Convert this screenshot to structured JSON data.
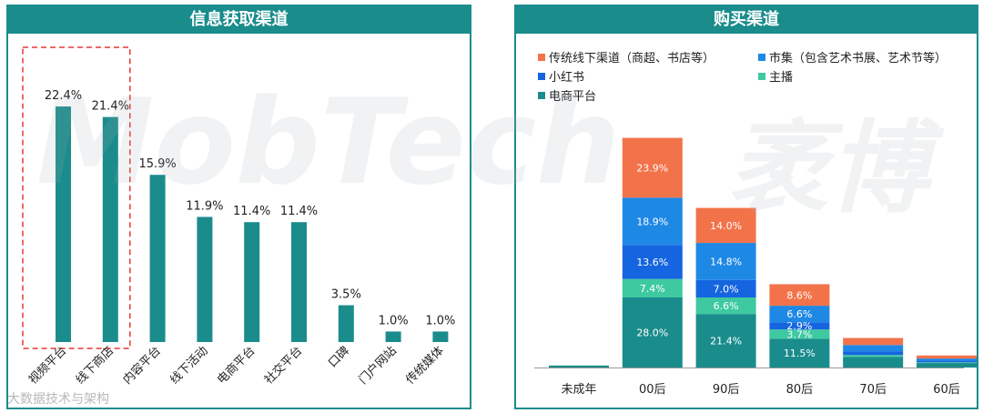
{
  "watermark": {
    "brand": "MobTech",
    "brand_cn": "袤博",
    "corner": "大数据技术与架构"
  },
  "chart_data": [
    {
      "type": "bar",
      "title": "信息获取渠道",
      "categories": [
        "视频平台",
        "线下商店",
        "内容平台",
        "线下活动",
        "电商平台",
        "社交平台",
        "口碑",
        "门户网站",
        "传统媒体"
      ],
      "values": [
        22.4,
        21.4,
        15.9,
        11.9,
        11.4,
        11.4,
        3.5,
        1.0,
        1.0
      ],
      "value_labels": [
        "22.4%",
        "21.4%",
        "15.9%",
        "11.9%",
        "11.4%",
        "11.4%",
        "3.5%",
        "1.0%",
        "1.0%"
      ],
      "ylim": [
        0,
        25
      ],
      "color": "#1a8c8c",
      "highlight": [
        "视频平台",
        "线下商店"
      ],
      "grid": false
    },
    {
      "type": "bar",
      "stacked": true,
      "title": "购买渠道",
      "categories": [
        "未成年",
        "00后",
        "90后",
        "80后",
        "70后",
        "60后"
      ],
      "legend_position": "top",
      "series": [
        {
          "name": "电商平台",
          "color": "#1a8c8c",
          "values": [
            0.8,
            28.0,
            21.4,
            11.5,
            4.2,
            1.8
          ],
          "labels": [
            "",
            "28.0%",
            "21.4%",
            "11.5%",
            "",
            ""
          ]
        },
        {
          "name": "主播",
          "color": "#3ec9a0",
          "values": [
            0,
            7.4,
            6.6,
            3.7,
            0.8,
            0.3
          ],
          "labels": [
            "",
            "7.4%",
            "6.6%",
            "3.7%",
            "",
            ""
          ]
        },
        {
          "name": "小红书",
          "color": "#1565e0",
          "values": [
            0,
            13.6,
            7.0,
            2.9,
            1.5,
            0.6
          ],
          "labels": [
            "",
            "13.6%",
            "7.0%",
            "2.9%",
            "",
            ""
          ]
        },
        {
          "name": "市集（包含艺术书展、艺术节等）",
          "color": "#1e88e5",
          "values": [
            0,
            18.9,
            14.8,
            6.6,
            2.5,
            0.9
          ],
          "labels": [
            "",
            "18.9%",
            "14.8%",
            "6.6%",
            "",
            ""
          ]
        },
        {
          "name": "传统线下渠道（商超、书店等）",
          "color": "#f2734a",
          "values": [
            0,
            23.9,
            14.0,
            8.6,
            2.8,
            1.2
          ],
          "labels": [
            "",
            "23.9%",
            "14.0%",
            "8.6%",
            "",
            ""
          ]
        }
      ],
      "legend_order": [
        "传统线下渠道（商超、书店等）",
        "市集（包含艺术书展、艺术节等）",
        "小红书",
        "主播",
        "电商平台"
      ],
      "grid": false
    }
  ]
}
